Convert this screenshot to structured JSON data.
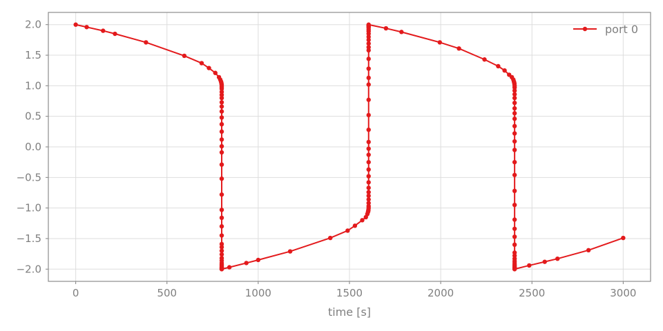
{
  "chart_data": {
    "type": "line",
    "title": "",
    "xlabel": "time [s]",
    "ylabel": "",
    "xlim": [
      -150,
      3150
    ],
    "ylim": [
      -2.2,
      2.2
    ],
    "xticks": [
      0,
      500,
      1000,
      1500,
      2000,
      2500,
      3000
    ],
    "xtick_labels": [
      "0",
      "500",
      "1000",
      "1500",
      "2000",
      "2500",
      "3000"
    ],
    "yticks": [
      -2.0,
      -1.5,
      -1.0,
      -0.5,
      0.0,
      0.5,
      1.0,
      1.5,
      2.0
    ],
    "ytick_labels": [
      "−2.0",
      "−1.5",
      "−1.0",
      "−0.5",
      "0.0",
      "0.5",
      "1.0",
      "1.5",
      "2.0"
    ],
    "grid": true,
    "legend_position": "top-right",
    "colors": {
      "series": "#e31a1c",
      "axis_text": "#7f7f7f",
      "grid": "#dddddd",
      "frame": "#8c8c8c"
    },
    "series": [
      {
        "name": "port 0",
        "x": [
          0,
          60,
          150,
          215,
          385,
          595,
          690,
          730,
          765,
          785,
          792,
          796,
          798,
          799,
          800,
          800,
          800,
          800,
          800,
          800,
          800,
          800,
          800,
          800,
          800,
          800,
          800,
          800,
          800,
          800,
          800,
          800,
          800,
          800,
          800,
          800,
          800,
          800,
          800,
          800,
          800,
          800,
          800,
          800,
          800,
          800,
          800,
          800,
          800,
          800,
          800,
          842,
          935,
          1000,
          1175,
          1395,
          1490,
          1530,
          1570,
          1590,
          1598,
          1601,
          1603,
          1604,
          1605,
          1605,
          1605,
          1605,
          1605,
          1605,
          1605,
          1605,
          1605,
          1605,
          1605,
          1605,
          1605,
          1605,
          1605,
          1605,
          1605,
          1605,
          1605,
          1605,
          1605,
          1605,
          1605,
          1605,
          1605,
          1605,
          1605,
          1605,
          1605,
          1605,
          1605,
          1605,
          1605,
          1605,
          1700,
          1785,
          1995,
          2100,
          2240,
          2315,
          2350,
          2375,
          2390,
          2398,
          2401,
          2403,
          2404,
          2405,
          2405,
          2405,
          2405,
          2405,
          2405,
          2405,
          2405,
          2405,
          2405,
          2405,
          2405,
          2405,
          2405,
          2405,
          2405,
          2405,
          2405,
          2405,
          2405,
          2405,
          2405,
          2405,
          2405,
          2405,
          2405,
          2405,
          2405,
          2405,
          2405,
          2405,
          2405,
          2405,
          2485,
          2570,
          2640,
          2810,
          3000
        ],
        "y": [
          2.0,
          1.96,
          1.9,
          1.85,
          1.71,
          1.49,
          1.37,
          1.29,
          1.21,
          1.14,
          1.1,
          1.07,
          1.05,
          1.03,
          1.01,
          0.98,
          0.95,
          0.9,
          0.85,
          0.8,
          0.73,
          0.66,
          0.58,
          0.48,
          0.37,
          0.25,
          0.12,
          0.01,
          -0.09,
          -0.29,
          -0.52,
          -0.78,
          -1.03,
          -1.16,
          -1.3,
          -1.45,
          -1.59,
          -1.64,
          -1.7,
          -1.76,
          -1.82,
          -1.86,
          -1.9,
          -1.93,
          -1.95,
          -1.97,
          -1.98,
          -1.99,
          -2.0,
          -2.0,
          -2.0,
          -1.97,
          -1.9,
          -1.85,
          -1.71,
          -1.49,
          -1.37,
          -1.29,
          -1.2,
          -1.15,
          -1.1,
          -1.07,
          -1.05,
          -1.03,
          -1.0,
          -0.97,
          -0.92,
          -0.86,
          -0.8,
          -0.74,
          -0.67,
          -0.58,
          -0.48,
          -0.37,
          -0.25,
          -0.13,
          -0.03,
          0.08,
          0.28,
          0.52,
          0.77,
          1.02,
          1.13,
          1.28,
          1.44,
          1.58,
          1.63,
          1.69,
          1.75,
          1.8,
          1.85,
          1.89,
          1.92,
          1.95,
          1.97,
          1.98,
          1.99,
          2.0,
          1.94,
          1.88,
          1.71,
          1.61,
          1.43,
          1.32,
          1.25,
          1.18,
          1.14,
          1.1,
          1.07,
          1.05,
          1.03,
          1.0,
          0.97,
          0.92,
          0.86,
          0.8,
          0.72,
          0.63,
          0.55,
          0.46,
          0.34,
          0.22,
          0.09,
          -0.05,
          -0.25,
          -0.46,
          -0.72,
          -0.95,
          -1.19,
          -1.34,
          -1.47,
          -1.6,
          -1.73,
          -1.78,
          -1.83,
          -1.87,
          -1.9,
          -1.93,
          -1.95,
          -1.97,
          -1.98,
          -1.99,
          -2.0,
          -2.0,
          -1.94,
          -1.88,
          -1.83,
          -1.69,
          -1.49
        ]
      }
    ]
  }
}
